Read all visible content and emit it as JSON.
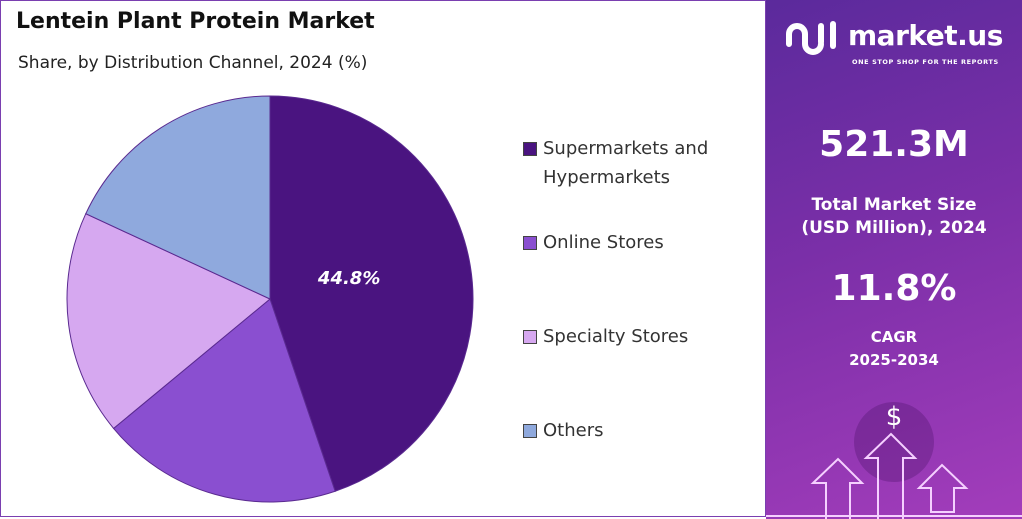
{
  "chart_data": {
    "type": "pie",
    "title": "Lentein Plant Protein Market",
    "subtitle": "Share, by Distribution Channel, 2024 (%)",
    "legend_position": "right",
    "slices": [
      {
        "label": "Supermarkets and Hypermarkets",
        "value": 44.8,
        "color": "#4a1480",
        "data_label": "44.8%"
      },
      {
        "label": "Online Stores",
        "value": 19.2,
        "color": "#8a4fd0"
      },
      {
        "label": "Specialty Stores",
        "value": 17.9,
        "color": "#d6a8f0"
      },
      {
        "label": "Others",
        "value": 18.1,
        "color": "#8fa9dd"
      }
    ]
  },
  "legend": {
    "items": [
      {
        "line1": "Supermarkets and",
        "line2": "Hypermarkets"
      },
      {
        "line1": "Online Stores"
      },
      {
        "line1": "Specialty Stores"
      },
      {
        "line1": "Others"
      }
    ]
  },
  "sidebar": {
    "brand": "market.us",
    "tagline": "ONE STOP SHOP FOR THE REPORTS",
    "market_size": "521.3M",
    "market_size_label_1": "Total Market Size",
    "market_size_label_2": "(USD Million), 2024",
    "cagr": "11.8%",
    "cagr_label_1": "CAGR",
    "cagr_label_2": "2025-2034",
    "dollar": "$",
    "background_color": "#7b2fa8"
  }
}
